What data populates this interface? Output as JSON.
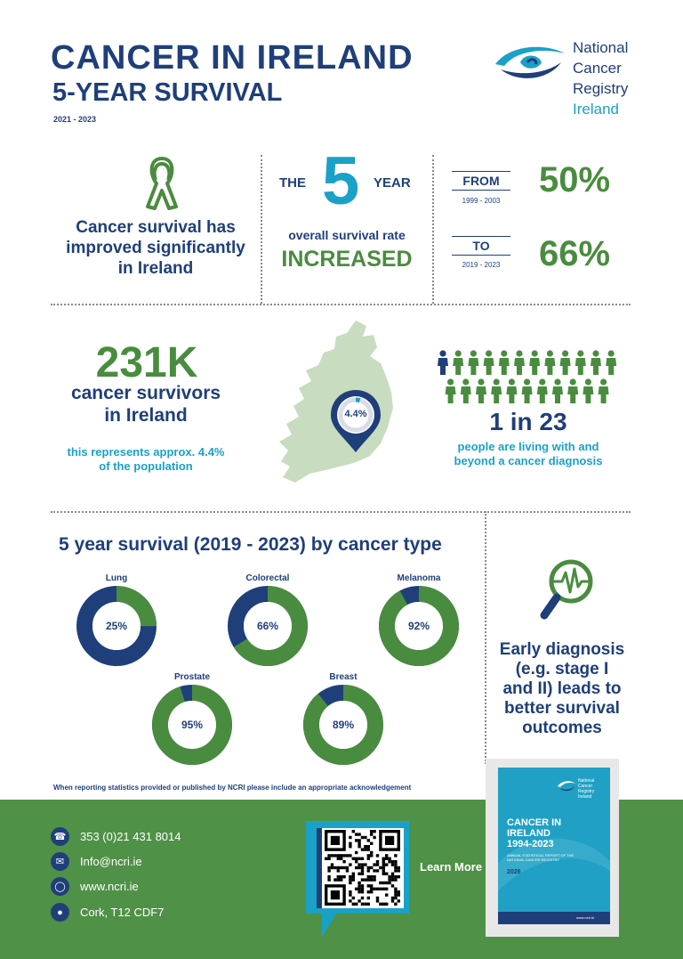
{
  "header": {
    "title_line1": "CANCER IN IRELAND",
    "title_line2": "5-YEAR SURVIVAL",
    "period": "2021 - 2023"
  },
  "logo": {
    "line1": "National",
    "line2": "Cancer",
    "line3": "Registry",
    "line4": "Ireland",
    "icon": "ncri-eye-logo-icon"
  },
  "improvement": {
    "icon": "awareness-ribbon-icon",
    "text_line1": "Cancer survival has",
    "text_line2": "improved significantly",
    "text_line3": "in Ireland"
  },
  "rate": {
    "the": "THE",
    "number": "5",
    "year": "YEAR",
    "subtitle": "overall survival rate",
    "status": "INCREASED"
  },
  "comparison": {
    "from_label": "FROM",
    "from_period": "1999 - 2003",
    "from_value": "50%",
    "to_label": "TO",
    "to_period": "2019 - 2023",
    "to_value": "66%"
  },
  "survivors": {
    "count": "231K",
    "label_line1": "cancer survivors",
    "label_line2": "in Ireland",
    "note_line1": "this represents approx. 4.4%",
    "note_line2": "of the population",
    "map_icon": "ireland-map-icon",
    "pin_value": "4.4%",
    "pin_fraction": 0.044
  },
  "ratio": {
    "icon": "people-icon",
    "highlighted": 1,
    "total": 23,
    "headline": "1 in 23",
    "text_line1": "people are living with and",
    "text_line2": "beyond a cancer diagnosis"
  },
  "by_type": {
    "heading": "5 year survival (2019 - 2023) by cancer type",
    "colors": {
      "survival": "#4a8c3f",
      "remainder": "#1f3f7a"
    },
    "items": [
      {
        "name": "Lung",
        "value": 25,
        "label": "25%"
      },
      {
        "name": "Colorectal",
        "value": 66,
        "label": "66%"
      },
      {
        "name": "Melanoma",
        "value": 92,
        "label": "92%"
      },
      {
        "name": "Prostate",
        "value": 95,
        "label": "95%"
      },
      {
        "name": "Breast",
        "value": 89,
        "label": "89%"
      }
    ]
  },
  "early": {
    "icon": "magnifier-heartbeat-icon",
    "line1": "Early diagnosis",
    "line2": "(e.g. stage I",
    "line3": "and II) leads to",
    "line4": "better survival",
    "line5": "outcomes"
  },
  "disclaimer": "When reporting statistics provided or published by NCRI please include an appropriate acknowledgement",
  "footer": {
    "phone": "353 (0)21 431 8014",
    "email": "Info@ncri.ie",
    "web": "www.ncri.ie",
    "address": "Cork, T12 CDF7",
    "icons": [
      "phone-icon",
      "mail-icon",
      "globe-icon",
      "location-pin-icon"
    ],
    "qr_icon": "qr-code-icon",
    "learn_more": "Learn More"
  },
  "report": {
    "logo_line1": "National",
    "logo_line2": "Cancer",
    "logo_line3": "Registry",
    "logo_line4": "Ireland",
    "title_line1": "CANCER IN",
    "title_line2": "IRELAND",
    "title_line3": "1994-2023",
    "subtitle_line1": "ANNUAL STATISTICAL REPORT OF THE",
    "subtitle_line2": "NATIONAL CANCER REGISTRY",
    "year": "2026",
    "url": "www.ncri.ie"
  }
}
